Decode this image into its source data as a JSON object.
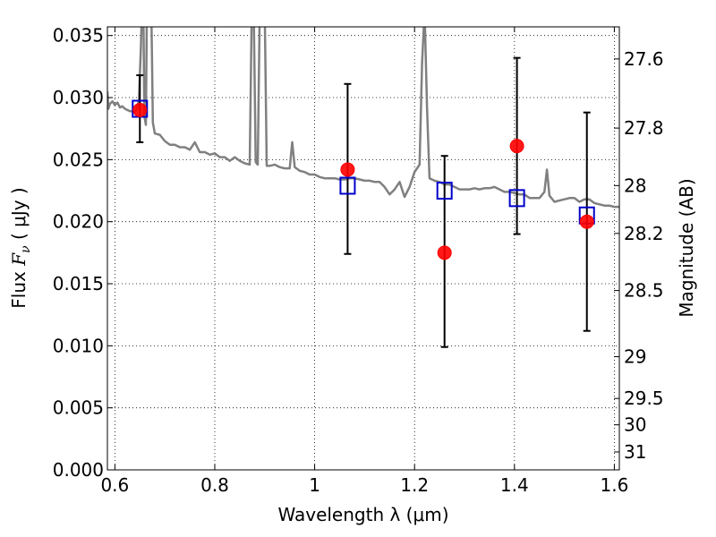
{
  "chart_data": {
    "type": "scatter",
    "xlabel": "Wavelength  λ (μm)",
    "ylabel_prefix": "Flux  ",
    "ylabel_symbol": "F",
    "ylabel_subscript": "ν",
    "ylabel_suffix": "  ( μJy )",
    "y2label": "Magnitude (AB)",
    "xlim": [
      0.585,
      1.61
    ],
    "ylim": [
      0.0,
      0.0357
    ],
    "grid": true,
    "xticks": [
      {
        "value": 0.6,
        "label": "0.6"
      },
      {
        "value": 0.8,
        "label": "0.8"
      },
      {
        "value": 1.0,
        "label": "1"
      },
      {
        "value": 1.2,
        "label": "1.2"
      },
      {
        "value": 1.4,
        "label": "1.4"
      },
      {
        "value": 1.6,
        "label": "1.6"
      }
    ],
    "yticks": [
      {
        "value": 0.0,
        "label": "0.000"
      },
      {
        "value": 0.005,
        "label": "0.005"
      },
      {
        "value": 0.01,
        "label": "0.010"
      },
      {
        "value": 0.015,
        "label": "0.015"
      },
      {
        "value": 0.02,
        "label": "0.020"
      },
      {
        "value": 0.025,
        "label": "0.025"
      },
      {
        "value": 0.03,
        "label": "0.030"
      },
      {
        "value": 0.035,
        "label": "0.035"
      }
    ],
    "y2ticks": [
      {
        "value": 27.6,
        "label": "27.6"
      },
      {
        "value": 27.8,
        "label": "27.8"
      },
      {
        "value": 28.0,
        "label": "28"
      },
      {
        "value": 28.2,
        "label": "28.2"
      },
      {
        "value": 28.5,
        "label": "28.5"
      },
      {
        "value": 29.0,
        "label": "29"
      },
      {
        "value": 29.5,
        "label": "29.5"
      },
      {
        "value": 30.0,
        "label": "30"
      },
      {
        "value": 31.0,
        "label": "31"
      }
    ],
    "series": [
      {
        "kind": "model_spectrum_line",
        "color": "#808080",
        "points": [
          [
            0.585,
            0.0305
          ],
          [
            0.587,
            0.0291
          ],
          [
            0.59,
            0.0295
          ],
          [
            0.595,
            0.0297
          ],
          [
            0.6,
            0.0294
          ],
          [
            0.605,
            0.0296
          ],
          [
            0.61,
            0.0292
          ],
          [
            0.615,
            0.0293
          ],
          [
            0.62,
            0.0291
          ],
          [
            0.625,
            0.029
          ],
          [
            0.63,
            0.0289
          ],
          [
            0.635,
            0.0289
          ],
          [
            0.64,
            0.0288
          ],
          [
            0.645,
            0.0292
          ],
          [
            0.648,
            0.0298
          ],
          [
            0.652,
            0.034
          ],
          [
            0.654,
            0.037
          ],
          [
            0.657,
            0.037
          ],
          [
            0.659,
            0.0285
          ],
          [
            0.662,
            0.0278
          ],
          [
            0.664,
            0.037
          ],
          [
            0.667,
            0.037
          ],
          [
            0.67,
            0.037
          ],
          [
            0.673,
            0.037
          ],
          [
            0.676,
            0.028
          ],
          [
            0.68,
            0.0271
          ],
          [
            0.69,
            0.027
          ],
          [
            0.7,
            0.0265
          ],
          [
            0.71,
            0.0262
          ],
          [
            0.72,
            0.0262
          ],
          [
            0.73,
            0.026
          ],
          [
            0.74,
            0.026
          ],
          [
            0.75,
            0.0258
          ],
          [
            0.76,
            0.0264
          ],
          [
            0.77,
            0.0256
          ],
          [
            0.78,
            0.0256
          ],
          [
            0.79,
            0.0254
          ],
          [
            0.8,
            0.0255
          ],
          [
            0.81,
            0.0252
          ],
          [
            0.82,
            0.0252
          ],
          [
            0.83,
            0.0249
          ],
          [
            0.84,
            0.0252
          ],
          [
            0.85,
            0.0249
          ],
          [
            0.86,
            0.0247
          ],
          [
            0.87,
            0.0246
          ],
          [
            0.874,
            0.037
          ],
          [
            0.878,
            0.037
          ],
          [
            0.882,
            0.0248
          ],
          [
            0.886,
            0.0246
          ],
          [
            0.89,
            0.037
          ],
          [
            0.895,
            0.037
          ],
          [
            0.9,
            0.037
          ],
          [
            0.904,
            0.0245
          ],
          [
            0.91,
            0.0245
          ],
          [
            0.92,
            0.0246
          ],
          [
            0.93,
            0.0244
          ],
          [
            0.94,
            0.0243
          ],
          [
            0.95,
            0.0243
          ],
          [
            0.955,
            0.0264
          ],
          [
            0.96,
            0.0244
          ],
          [
            0.97,
            0.0241
          ],
          [
            0.98,
            0.024
          ],
          [
            0.99,
            0.0238
          ],
          [
            1.0,
            0.0238
          ],
          [
            1.01,
            0.0236
          ],
          [
            1.02,
            0.0235
          ],
          [
            1.03,
            0.0235
          ],
          [
            1.04,
            0.0235
          ],
          [
            1.05,
            0.0234
          ],
          [
            1.06,
            0.0234
          ],
          [
            1.07,
            0.0235
          ],
          [
            1.08,
            0.0235
          ],
          [
            1.09,
            0.0234
          ],
          [
            1.1,
            0.0233
          ],
          [
            1.11,
            0.0233
          ],
          [
            1.12,
            0.0232
          ],
          [
            1.13,
            0.0232
          ],
          [
            1.14,
            0.0228
          ],
          [
            1.15,
            0.0222
          ],
          [
            1.16,
            0.0226
          ],
          [
            1.17,
            0.0232
          ],
          [
            1.18,
            0.022
          ],
          [
            1.19,
            0.0228
          ],
          [
            1.2,
            0.024
          ],
          [
            1.21,
            0.0246
          ],
          [
            1.215,
            0.0328
          ],
          [
            1.22,
            0.037
          ],
          [
            1.225,
            0.029
          ],
          [
            1.23,
            0.0235
          ],
          [
            1.24,
            0.0233
          ],
          [
            1.25,
            0.0232
          ],
          [
            1.26,
            0.023
          ],
          [
            1.27,
            0.023
          ],
          [
            1.28,
            0.0228
          ],
          [
            1.29,
            0.0226
          ],
          [
            1.3,
            0.0226
          ],
          [
            1.31,
            0.0226
          ],
          [
            1.32,
            0.0227
          ],
          [
            1.33,
            0.0226
          ],
          [
            1.34,
            0.0227
          ],
          [
            1.35,
            0.0227
          ],
          [
            1.36,
            0.0228
          ],
          [
            1.37,
            0.0226
          ],
          [
            1.38,
            0.0224
          ],
          [
            1.39,
            0.0224
          ],
          [
            1.4,
            0.0223
          ],
          [
            1.41,
            0.0222
          ],
          [
            1.42,
            0.0222
          ],
          [
            1.43,
            0.0219
          ],
          [
            1.44,
            0.0219
          ],
          [
            1.45,
            0.0219
          ],
          [
            1.46,
            0.0224
          ],
          [
            1.465,
            0.0242
          ],
          [
            1.47,
            0.0221
          ],
          [
            1.48,
            0.0216
          ],
          [
            1.49,
            0.0217
          ],
          [
            1.5,
            0.0218
          ],
          [
            1.51,
            0.0219
          ],
          [
            1.52,
            0.0219
          ],
          [
            1.53,
            0.0216
          ],
          [
            1.54,
            0.0218
          ],
          [
            1.55,
            0.0218
          ],
          [
            1.56,
            0.0215
          ],
          [
            1.57,
            0.0214
          ],
          [
            1.58,
            0.0213
          ],
          [
            1.59,
            0.0213
          ],
          [
            1.6,
            0.0212
          ],
          [
            1.61,
            0.0212
          ]
        ]
      },
      {
        "kind": "model_bandpass_squares",
        "color": "#0000cc",
        "points": [
          {
            "x": 0.65,
            "y": 0.0291
          },
          {
            "x": 1.066,
            "y": 0.0229
          },
          {
            "x": 1.26,
            "y": 0.0225
          },
          {
            "x": 1.405,
            "y": 0.0219
          },
          {
            "x": 1.545,
            "y": 0.0205
          }
        ]
      },
      {
        "kind": "observed_points_with_errors",
        "color": "#ff0000",
        "points": [
          {
            "x": 0.65,
            "y": 0.029,
            "ylow": 0.0264,
            "yhigh": 0.0318
          },
          {
            "x": 1.066,
            "y": 0.0242,
            "ylow": 0.0174,
            "yhigh": 0.0311
          },
          {
            "x": 1.26,
            "y": 0.0175,
            "ylow": 0.0099,
            "yhigh": 0.0253
          },
          {
            "x": 1.405,
            "y": 0.0261,
            "ylow": 0.019,
            "yhigh": 0.0332
          },
          {
            "x": 1.545,
            "y": 0.02,
            "ylow": 0.0112,
            "yhigh": 0.0288
          }
        ]
      }
    ]
  }
}
